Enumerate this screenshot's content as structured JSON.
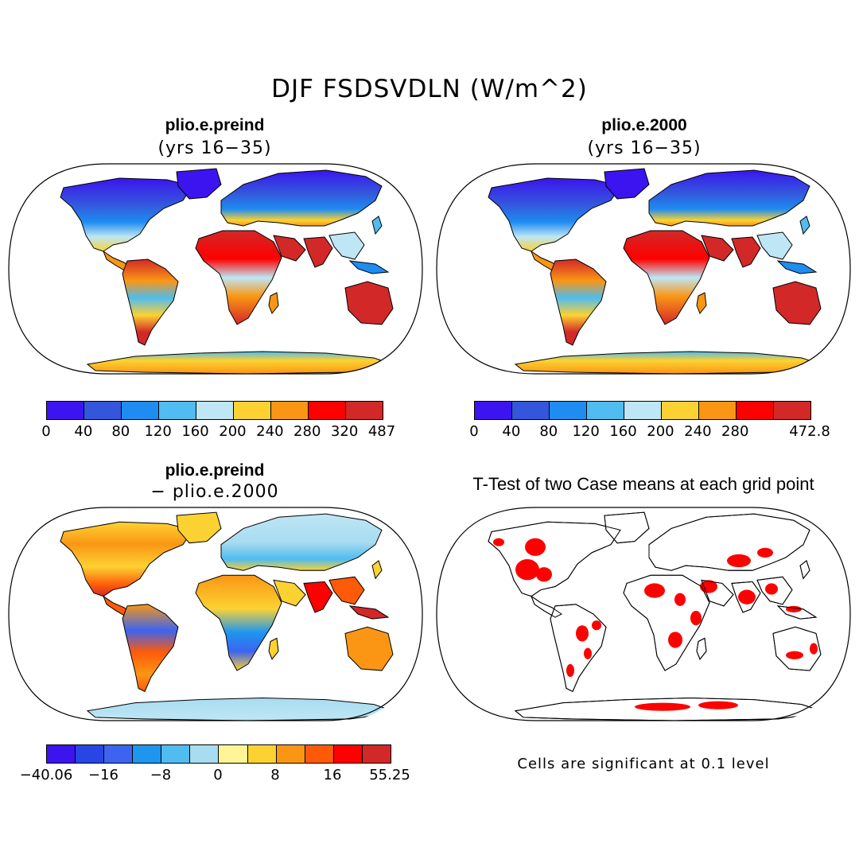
{
  "figure": {
    "title": "DJF FSDSVDLN (W/m^2)"
  },
  "colors": {
    "ocean": "#ffffff",
    "coast": "#000000",
    "significant": "#ff0000"
  },
  "panels": [
    {
      "id": "preind",
      "title": "plio.e.preind",
      "subtitle": "(yrs 16−35)",
      "colorbar": {
        "colors": [
          "#3b14f0",
          "#3456dc",
          "#1e8cf0",
          "#50bcf0",
          "#bee6f5",
          "#fcd232",
          "#fa9614",
          "#ff0000",
          "#d22828"
        ],
        "labels": [
          "0",
          "40",
          "80",
          "120",
          "160",
          "200",
          "240",
          "280",
          "320",
          "487"
        ]
      }
    },
    {
      "id": "y2000",
      "title": "plio.e.2000",
      "subtitle": "(yrs 16−35)",
      "colorbar": {
        "colors": [
          "#3b14f0",
          "#3456dc",
          "#1e8cf0",
          "#50bcf0",
          "#bee6f5",
          "#fcd232",
          "#fa9614",
          "#ff0000",
          "#d22828"
        ],
        "labels": [
          "0",
          "40",
          "80",
          "120",
          "160",
          "200",
          "240",
          "280",
          "",
          "472.8"
        ]
      }
    },
    {
      "id": "diff",
      "title": "plio.e.preind",
      "subtitle": "− plio.e.2000",
      "colorbar": {
        "colors": [
          "#3b14f0",
          "#2846e6",
          "#3c64f0",
          "#1e96f0",
          "#50bcf0",
          "#a8dcf0",
          "#fff596",
          "#fcd232",
          "#fa9614",
          "#ff5a0a",
          "#ff0000",
          "#d22828"
        ],
        "labels": [
          "−40.06",
          "−16",
          "−8",
          "0",
          "8",
          "16",
          "55.25"
        ]
      }
    },
    {
      "id": "ttest",
      "title": "T-Test of two Case means at each grid point",
      "note": "Cells are significant at 0.1 level"
    }
  ]
}
